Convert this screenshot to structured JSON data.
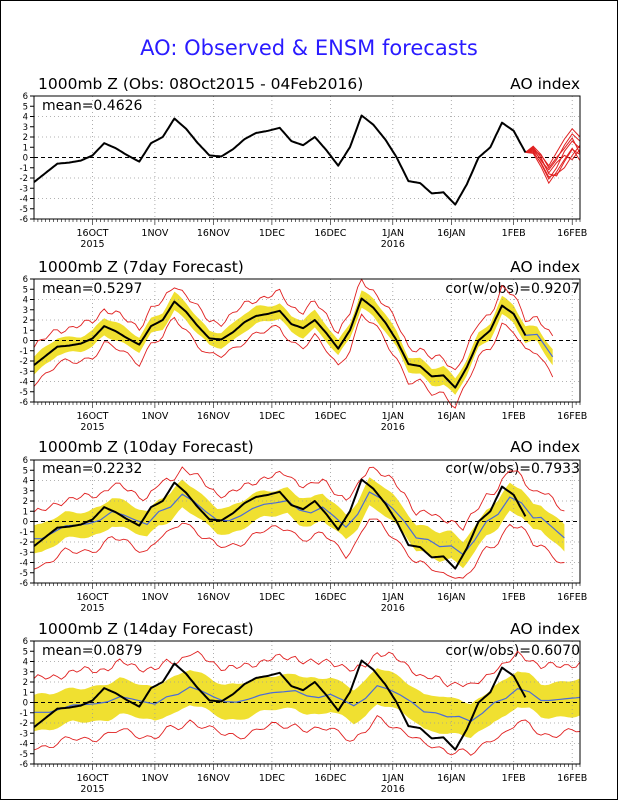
{
  "title": "AO: Observed & ENSM forecasts",
  "colors": {
    "title": "#2a1bff",
    "observed": "#000000",
    "ensemble_mean": "#4a6bd8",
    "spread_fill": "#f0e030",
    "spread_edge": "#e02020",
    "forecast_members": "#e02020"
  },
  "x_ticks": [
    {
      "day": 15,
      "label": "16OCT",
      "year": "2015"
    },
    {
      "day": 31,
      "label": "1NOV",
      "year": ""
    },
    {
      "day": 46,
      "label": "16NOV",
      "year": ""
    },
    {
      "day": 61,
      "label": "1DEC",
      "year": ""
    },
    {
      "day": 76,
      "label": "16DEC",
      "year": ""
    },
    {
      "day": 92,
      "label": "1JAN",
      "year": "2016"
    },
    {
      "day": 107,
      "label": "16JAN",
      "year": ""
    },
    {
      "day": 123,
      "label": "1FEB",
      "year": ""
    },
    {
      "day": 138,
      "label": "16FEB",
      "year": ""
    }
  ],
  "y_ticks": [
    -6,
    -5,
    -4,
    -3,
    -2,
    -1,
    0,
    1,
    2,
    3,
    4,
    5,
    6
  ],
  "observed_day": [
    0,
    3,
    6,
    9,
    12,
    15,
    18,
    21,
    24,
    27,
    30,
    33,
    36,
    39,
    42,
    45,
    48,
    51,
    54,
    57,
    60,
    63,
    66,
    69,
    72,
    75,
    78,
    81,
    84,
    87,
    90,
    93,
    96,
    99,
    102,
    105,
    108,
    111,
    114,
    117,
    120,
    123,
    126
  ],
  "observed_ao": [
    -2.4,
    -1.5,
    -0.6,
    -0.5,
    -0.3,
    0.2,
    1.4,
    0.9,
    0.2,
    -0.4,
    1.4,
    2.0,
    3.8,
    2.8,
    1.4,
    0.2,
    0.1,
    0.8,
    1.8,
    2.4,
    2.6,
    2.9,
    1.6,
    1.2,
    2.0,
    0.7,
    -0.8,
    1.0,
    4.1,
    3.2,
    1.8,
    0.0,
    -2.3,
    -2.5,
    -3.5,
    -3.4,
    -4.6,
    -2.6,
    0.0,
    1.0,
    3.4,
    2.6,
    0.5
  ],
  "charts": [
    {
      "header_left": "1000mb Z (Obs: 08Oct2015 - 04Feb2016)",
      "header_right": "AO index",
      "mean": "mean=0.4626",
      "cor": "",
      "chart_data": {
        "type": "line",
        "xlabel": "",
        "ylabel": "",
        "ylim": [
          -6,
          6
        ],
        "xlim": [
          0,
          140
        ],
        "grid": "dotted",
        "series": [
          {
            "name": "",
            "source": "observed"
          },
          {
            "name": "",
            "kind": "forecast_members",
            "members": [
              {
                "day": [
                  126,
                  128,
                  130,
                  132,
                  134,
                  136,
                  138,
                  140
                ],
                "values": [
                  0.5,
                  1.0,
                  0.0,
                  -1.6,
                  -1.8,
                  -0.4,
                  0.8,
                  0.3
                ]
              },
              {
                "day": [
                  126,
                  128,
                  130,
                  132,
                  134,
                  136,
                  138,
                  140
                ],
                "values": [
                  0.5,
                  0.6,
                  -0.6,
                  -2.1,
                  -1.0,
                  0.6,
                  1.6,
                  0.9
                ]
              },
              {
                "day": [
                  126,
                  128,
                  130,
                  132,
                  134,
                  136,
                  138,
                  140
                ],
                "values": [
                  0.5,
                  0.9,
                  -0.3,
                  -1.2,
                  -0.2,
                  1.2,
                  2.3,
                  1.6
                ]
              },
              {
                "day": [
                  126,
                  128,
                  130,
                  132,
                  134,
                  136,
                  138,
                  140
                ],
                "values": [
                  0.5,
                  0.4,
                  -0.9,
                  -2.5,
                  -1.4,
                  -0.2,
                  0.9,
                  -0.3
                ]
              },
              {
                "day": [
                  126,
                  128,
                  130,
                  132,
                  134,
                  136,
                  138,
                  140
                ],
                "values": [
                  0.5,
                  0.8,
                  0.2,
                  -0.8,
                  0.5,
                  1.8,
                  2.8,
                  2.0
                ]
              },
              {
                "day": [
                  126,
                  128,
                  130,
                  132,
                  134,
                  136,
                  138,
                  140
                ],
                "values": [
                  0.5,
                  0.7,
                  -0.2,
                  -1.5,
                  -0.5,
                  0.2,
                  -0.2,
                  0.8
                ]
              },
              {
                "day": [
                  126,
                  128,
                  130,
                  132,
                  134,
                  136,
                  138,
                  140
                ],
                "values": [
                  0.5,
                  0.5,
                  -0.5,
                  -1.9,
                  -1.6,
                  -1.0,
                  0.2,
                  1.2
                ]
              },
              {
                "day": [
                  126,
                  128,
                  130,
                  132,
                  134,
                  136,
                  138,
                  140
                ],
                "values": [
                  0.5,
                  1.1,
                  0.3,
                  -1.0,
                  0.0,
                  0.9,
                  1.9,
                  0.4
                ]
              }
            ]
          }
        ]
      }
    },
    {
      "header_left": "1000mb Z (7day Forecast)",
      "header_right": "AO index",
      "mean": "mean=0.5297",
      "cor": "cor(w/obs)=0.9207",
      "chart_data": {
        "type": "line",
        "xlabel": "",
        "ylabel": "",
        "ylim": [
          -6,
          6
        ],
        "xlim": [
          0,
          140
        ],
        "grid": "dotted",
        "forecast_end_day": 133,
        "series": [
          {
            "name": "",
            "source": "observed"
          },
          {
            "name": "",
            "kind": "ensemble_mean",
            "shift": 0,
            "extend": [
              [
                129,
                0.6
              ],
              [
                133,
                -1.6
              ]
            ]
          },
          {
            "name": "",
            "kind": "spread",
            "inner": 0.8,
            "outer": 1.7
          }
        ]
      }
    },
    {
      "header_left": "1000mb Z (10day Forecast)",
      "header_right": "AO index",
      "mean": "mean=0.2232",
      "cor": "cor(w/obs)=0.7933",
      "chart_data": {
        "type": "line",
        "xlabel": "",
        "ylabel": "",
        "ylim": [
          -6,
          6
        ],
        "xlim": [
          0,
          140
        ],
        "grid": "dotted",
        "forecast_end_day": 136,
        "series": [
          {
            "name": "",
            "source": "observed"
          },
          {
            "name": "",
            "kind": "ensemble_mean",
            "shift": 2,
            "damp": 0.7,
            "extend": [
              [
                130,
                0.4
              ],
              [
                136,
                -1.6
              ]
            ]
          },
          {
            "name": "",
            "kind": "spread",
            "inner": 1.3,
            "outer": 2.6
          }
        ]
      }
    },
    {
      "header_left": "1000mb Z (14day Forecast)",
      "header_right": "AO index",
      "mean": "mean=0.0879",
      "cor": "cor(w/obs)=0.6070",
      "chart_data": {
        "type": "line",
        "xlabel": "",
        "ylabel": "",
        "ylim": [
          -6,
          6
        ],
        "xlim": [
          0,
          140
        ],
        "grid": "dotted",
        "forecast_end_day": 140,
        "series": [
          {
            "name": "",
            "source": "observed"
          },
          {
            "name": "",
            "kind": "ensemble_mean",
            "shift": 4,
            "damp": 0.4,
            "extend": [
              [
                132,
                0.2
              ],
              [
                140,
                0.5
              ]
            ]
          },
          {
            "name": "",
            "kind": "spread",
            "inner": 1.7,
            "outer": 3.3
          }
        ]
      }
    }
  ]
}
